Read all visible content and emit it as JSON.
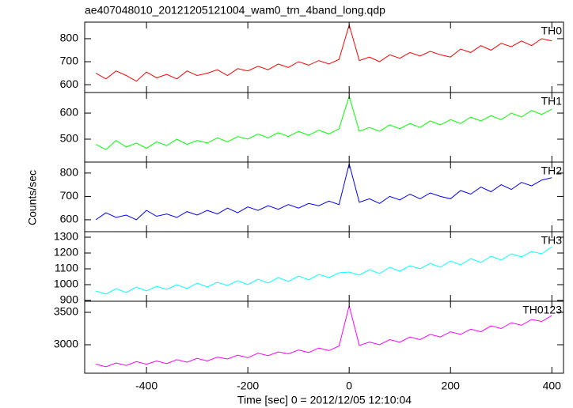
{
  "title": "ae407048010_20121205121004_wam0_trn_4band_long.qdp",
  "xlabel": "Time [sec] 0 = 2012/12/05 12:10:04",
  "ylabel": "Counts/sec",
  "chart_data": [
    {
      "type": "line",
      "series": [
        {
          "name": "TH0",
          "color": "#ff0000",
          "x": [
            -500,
            -480,
            -460,
            -440,
            -420,
            -400,
            -380,
            -360,
            -340,
            -320,
            -300,
            -280,
            -260,
            -240,
            -220,
            -200,
            -180,
            -160,
            -140,
            -120,
            -100,
            -80,
            -60,
            -40,
            -20,
            0,
            20,
            40,
            60,
            80,
            100,
            120,
            140,
            160,
            180,
            200,
            220,
            240,
            260,
            280,
            300,
            320,
            340,
            360,
            380,
            400
          ],
          "values": [
            650,
            625,
            660,
            640,
            615,
            655,
            630,
            645,
            625,
            660,
            640,
            650,
            665,
            640,
            670,
            660,
            680,
            665,
            690,
            675,
            700,
            685,
            705,
            690,
            710,
            860,
            705,
            720,
            700,
            730,
            715,
            740,
            725,
            745,
            730,
            720,
            755,
            740,
            770,
            750,
            780,
            765,
            790,
            770,
            800,
            790
          ]
        }
      ],
      "xlim": [
        -522,
        423
      ],
      "xticks": [
        -400,
        -200,
        0,
        200,
        400
      ],
      "ylim": [
        566,
        872
      ],
      "yticks": [
        600,
        700,
        800
      ]
    },
    {
      "type": "line",
      "series": [
        {
          "name": "TH1",
          "color": "#00ff00",
          "x": [
            -500,
            -480,
            -460,
            -440,
            -420,
            -400,
            -380,
            -360,
            -340,
            -320,
            -300,
            -280,
            -260,
            -240,
            -220,
            -200,
            -180,
            -160,
            -140,
            -120,
            -100,
            -80,
            -60,
            -40,
            -20,
            0,
            20,
            40,
            60,
            80,
            100,
            120,
            140,
            160,
            180,
            200,
            220,
            240,
            260,
            280,
            300,
            320,
            340,
            360,
            380,
            400
          ],
          "values": [
            480,
            460,
            495,
            470,
            485,
            465,
            490,
            475,
            500,
            480,
            495,
            485,
            505,
            490,
            510,
            500,
            520,
            505,
            525,
            510,
            530,
            515,
            535,
            520,
            540,
            665,
            530,
            545,
            530,
            555,
            540,
            560,
            545,
            570,
            555,
            575,
            560,
            585,
            570,
            590,
            575,
            600,
            585,
            610,
            595,
            615
          ]
        }
      ],
      "xlim": [
        -522,
        423
      ],
      "xticks": [
        -400,
        -200,
        0,
        200,
        400
      ],
      "ylim": [
        412,
        679
      ],
      "yticks": [
        500,
        600
      ]
    },
    {
      "type": "line",
      "series": [
        {
          "name": "TH2",
          "color": "#0000ff",
          "x": [
            -500,
            -480,
            -460,
            -440,
            -420,
            -400,
            -380,
            -360,
            -340,
            -320,
            -300,
            -280,
            -260,
            -240,
            -220,
            -200,
            -180,
            -160,
            -140,
            -120,
            -100,
            -80,
            -60,
            -40,
            -20,
            0,
            20,
            40,
            60,
            80,
            100,
            120,
            140,
            160,
            180,
            200,
            220,
            240,
            260,
            280,
            300,
            320,
            340,
            360,
            380,
            400
          ],
          "values": [
            600,
            630,
            610,
            620,
            600,
            640,
            615,
            625,
            610,
            635,
            620,
            640,
            625,
            650,
            630,
            655,
            640,
            660,
            645,
            665,
            650,
            670,
            660,
            680,
            665,
            840,
            675,
            690,
            670,
            700,
            685,
            710,
            690,
            715,
            700,
            690,
            725,
            710,
            740,
            720,
            750,
            730,
            760,
            745,
            770,
            780
          ]
        }
      ],
      "xlim": [
        -522,
        423
      ],
      "xticks": [
        -400,
        -200,
        0,
        200,
        400
      ],
      "ylim": [
        549,
        847
      ],
      "yticks": [
        600,
        700,
        800
      ]
    },
    {
      "type": "line",
      "series": [
        {
          "name": "TH3",
          "color": "#00ffff",
          "x": [
            -500,
            -480,
            -460,
            -440,
            -420,
            -400,
            -380,
            -360,
            -340,
            -320,
            -300,
            -280,
            -260,
            -240,
            -220,
            -200,
            -180,
            -160,
            -140,
            -120,
            -100,
            -80,
            -60,
            -40,
            -20,
            0,
            20,
            40,
            60,
            80,
            100,
            120,
            140,
            160,
            180,
            200,
            220,
            240,
            260,
            280,
            300,
            320,
            340,
            360,
            380,
            400
          ],
          "values": [
            960,
            940,
            975,
            950,
            985,
            960,
            990,
            970,
            1000,
            975,
            1010,
            985,
            1015,
            995,
            1025,
            1000,
            1035,
            1010,
            1045,
            1020,
            1055,
            1030,
            1065,
            1045,
            1075,
            1080,
            1060,
            1095,
            1070,
            1110,
            1085,
            1120,
            1100,
            1135,
            1110,
            1150,
            1125,
            1165,
            1140,
            1180,
            1155,
            1195,
            1175,
            1210,
            1195,
            1240
          ]
        }
      ],
      "xlim": [
        -522,
        423
      ],
      "xticks": [
        -400,
        -200,
        0,
        200,
        400
      ],
      "ylim": [
        895,
        1335
      ],
      "yticks": [
        900,
        1000,
        1100,
        1200,
        1300
      ]
    },
    {
      "type": "line",
      "series": [
        {
          "name": "TH0123",
          "color": "#ff00ff",
          "x": [
            -500,
            -480,
            -460,
            -440,
            -420,
            -400,
            -380,
            -360,
            -340,
            -320,
            -300,
            -280,
            -260,
            -240,
            -220,
            -200,
            -180,
            -160,
            -140,
            -120,
            -100,
            -80,
            -60,
            -40,
            -20,
            0,
            20,
            40,
            60,
            80,
            100,
            120,
            140,
            160,
            180,
            200,
            220,
            240,
            260,
            280,
            300,
            320,
            340,
            360,
            380,
            400
          ],
          "values": [
            2700,
            2660,
            2720,
            2680,
            2740,
            2700,
            2750,
            2710,
            2770,
            2730,
            2790,
            2750,
            2810,
            2780,
            2840,
            2800,
            2870,
            2830,
            2890,
            2860,
            2920,
            2880,
            2950,
            2910,
            2980,
            3600,
            2990,
            3040,
            3000,
            3080,
            3040,
            3120,
            3080,
            3160,
            3120,
            3200,
            3160,
            3240,
            3200,
            3290,
            3250,
            3340,
            3300,
            3390,
            3360,
            3450
          ]
        }
      ],
      "xlim": [
        -522,
        423
      ],
      "xticks": [
        -400,
        -200,
        0,
        200,
        400
      ],
      "ylim": [
        2561,
        3671
      ],
      "yticks": [
        3000,
        3500
      ]
    }
  ]
}
